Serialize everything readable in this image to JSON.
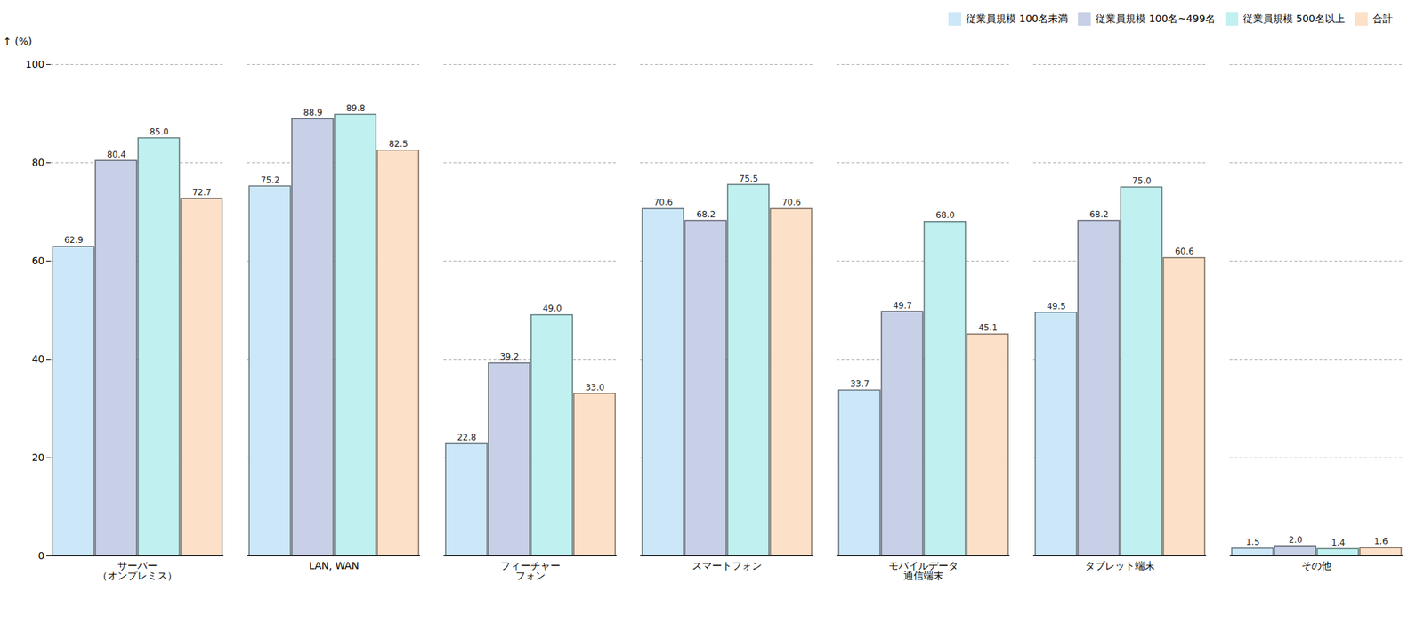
{
  "chart_data": {
    "type": "bar",
    "categories": [
      "サーバー\n（オンプレミス）",
      "LAN, WAN",
      "フィーチャー\nフォン",
      "スマートフォン",
      "モバイルデータ\n通信端末",
      "タブレット端末",
      "その他"
    ],
    "series": [
      {
        "name": "従業員規模 100名未満",
        "color": "#cce8f8",
        "values": [
          62.9,
          75.2,
          22.8,
          70.6,
          33.7,
          49.5,
          1.5
        ],
        "value_labels": [
          "62.9",
          "75.2",
          "22.8",
          "70.6",
          "33.7",
          "49.5",
          "1.5"
        ]
      },
      {
        "name": "従業員規模 100名~499名",
        "color": "#c8d0e8",
        "values": [
          80.4,
          88.9,
          39.2,
          68.2,
          49.7,
          68.2,
          2.0
        ],
        "value_labels": [
          "80.4",
          "88.9",
          "39.2",
          "68.2",
          "49.7",
          "68.2",
          "2.0"
        ]
      },
      {
        "name": "従業員規模 500名以上",
        "color": "#c0f0f0",
        "values": [
          85.0,
          89.8,
          49.0,
          75.5,
          68.0,
          75.0,
          1.4
        ],
        "value_labels": [
          "85.0",
          "89.8",
          "49.0",
          "75.5",
          "68.0",
          "75.0",
          "1.4"
        ]
      },
      {
        "name": "合計",
        "color": "#fde0c8",
        "values": [
          72.7,
          82.5,
          33.0,
          70.6,
          45.1,
          60.6,
          1.6
        ],
        "value_labels": [
          "72.7",
          "82.5",
          "33.0",
          "70.6",
          "45.1",
          "60.6",
          "1.6"
        ]
      }
    ],
    "ylabel": "(%)",
    "ylim": [
      0,
      100
    ],
    "yticks": [
      0,
      20,
      40,
      60,
      80,
      100
    ],
    "grid": true,
    "legend": "upper right",
    "data_labels": true
  }
}
